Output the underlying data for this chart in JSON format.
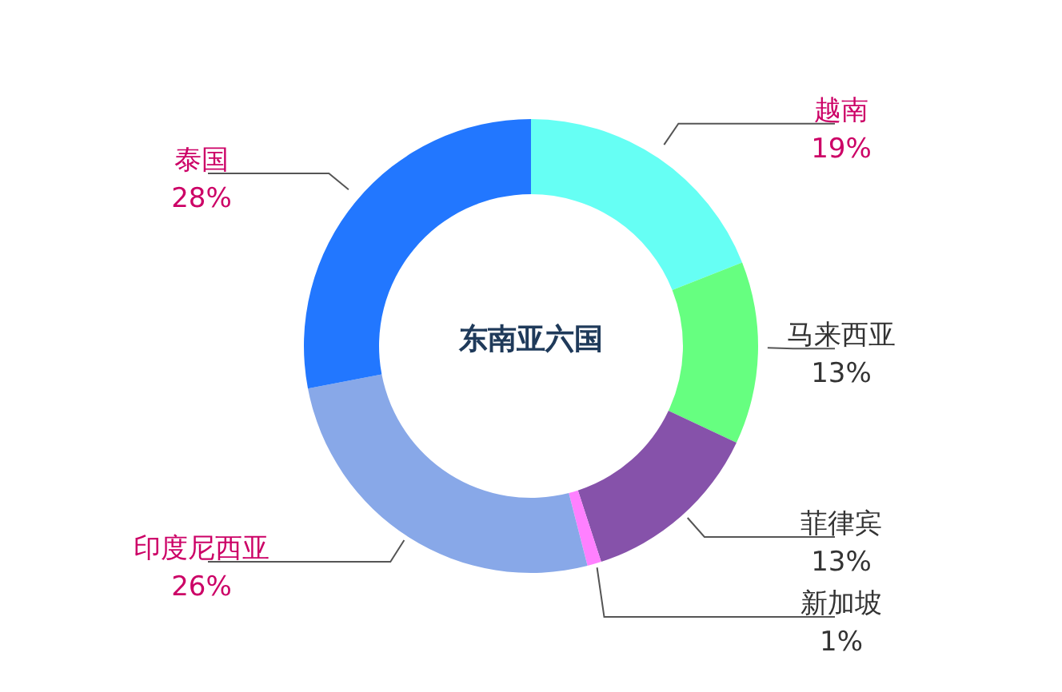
{
  "chart_data": {
    "type": "donut",
    "title": "东南亚六国",
    "categories": [
      "越南",
      "马来西亚",
      "菲律宾",
      "新加坡",
      "印度尼西亚",
      "泰国"
    ],
    "values": [
      19,
      13,
      13,
      1,
      26,
      28
    ],
    "colors": [
      "#66fff4",
      "#66ff80",
      "#8652aa",
      "#ff80ff",
      "#88a8e8",
      "#2277ff"
    ],
    "value_labels": [
      "19%",
      "13%",
      "13%",
      "1%",
      "26%",
      "28%"
    ]
  }
}
